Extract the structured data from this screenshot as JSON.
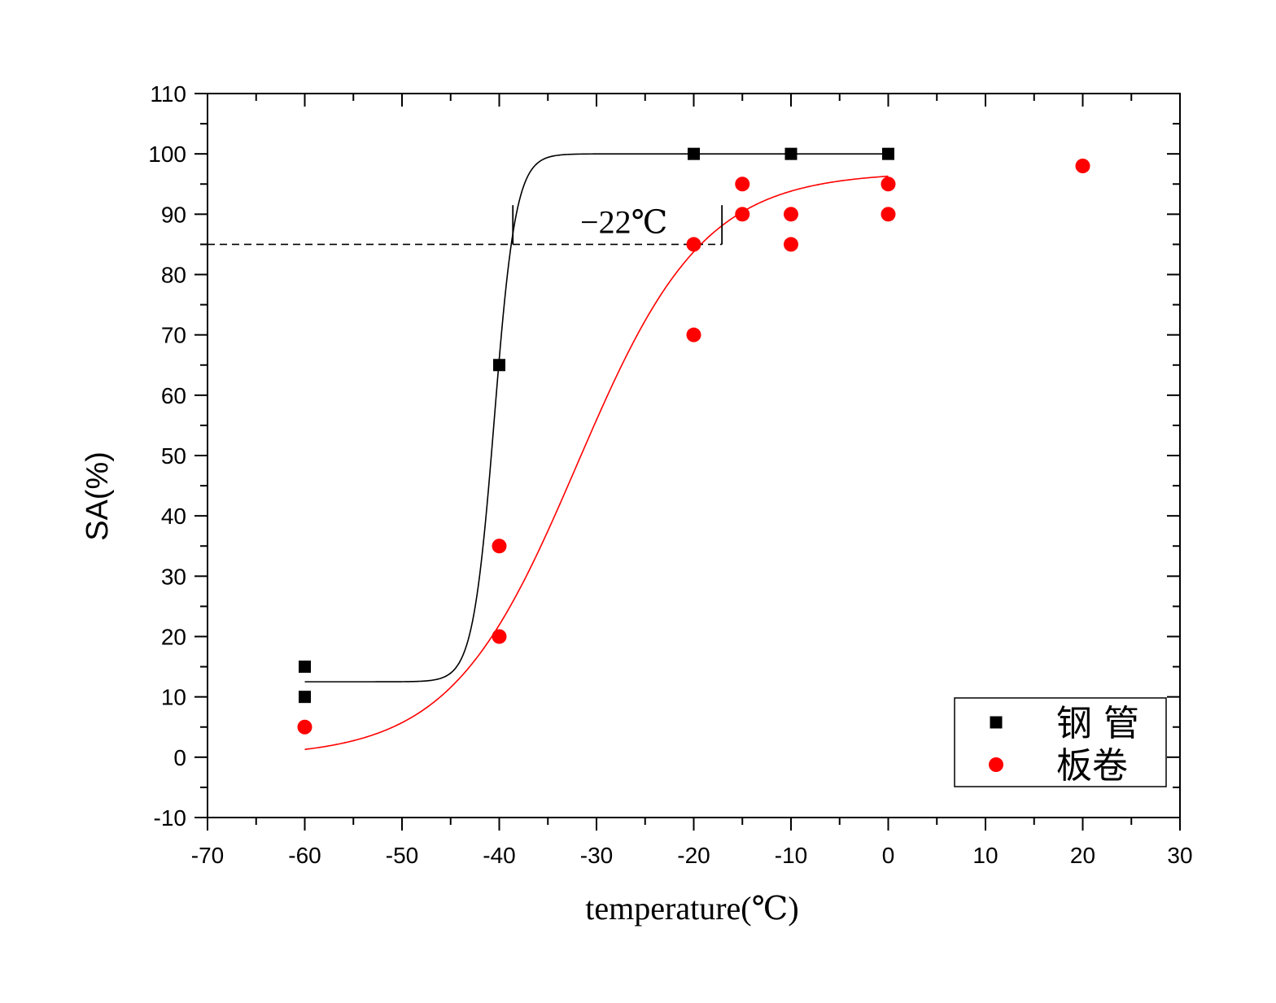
{
  "chart_data": {
    "type": "scatter",
    "xlabel": "temperature(℃)",
    "ylabel": "SA(%)",
    "xlim": [
      -70,
      30
    ],
    "ylim": [
      -10,
      110
    ],
    "x_ticks": [
      -70,
      -60,
      -50,
      -40,
      -30,
      -20,
      -10,
      0,
      10,
      20,
      30
    ],
    "y_ticks": [
      -10,
      0,
      10,
      20,
      30,
      40,
      50,
      60,
      70,
      80,
      90,
      100,
      110
    ],
    "grid": false,
    "legend": "bottom-right",
    "series": [
      {
        "name": "钢 管",
        "marker": "square",
        "color": "#000000",
        "points": [
          {
            "x": -60,
            "y": 15
          },
          {
            "x": -60,
            "y": 10
          },
          {
            "x": -40,
            "y": 65
          },
          {
            "x": -20,
            "y": 100
          },
          {
            "x": -10,
            "y": 100
          },
          {
            "x": 0,
            "y": 100
          }
        ],
        "fit": {
          "model": "boltzmann",
          "bottom": 12.5,
          "top": 100,
          "x0": -40.5,
          "dx": 1.1,
          "x_range": [
            -60,
            0
          ]
        }
      },
      {
        "name": "板卷",
        "marker": "circle",
        "color": "#ff0000",
        "points": [
          {
            "x": -60,
            "y": 5
          },
          {
            "x": -40,
            "y": 35
          },
          {
            "x": -40,
            "y": 20
          },
          {
            "x": -20,
            "y": 85
          },
          {
            "x": -20,
            "y": 70
          },
          {
            "x": -15,
            "y": 95
          },
          {
            "x": -15,
            "y": 90
          },
          {
            "x": -10,
            "y": 90
          },
          {
            "x": -10,
            "y": 85
          },
          {
            "x": 0,
            "y": 95
          },
          {
            "x": 0,
            "y": 90
          },
          {
            "x": 20,
            "y": 98
          }
        ],
        "fit": {
          "model": "boltzmann",
          "bottom": 0,
          "top": 97,
          "x0": -32,
          "dx": 6.5,
          "x_range": [
            -60,
            0
          ]
        }
      }
    ],
    "annotation": {
      "label": "−22℃",
      "level": 85,
      "x_left": -38.6,
      "x_right": -17.1,
      "marker_top": 91.5
    }
  }
}
